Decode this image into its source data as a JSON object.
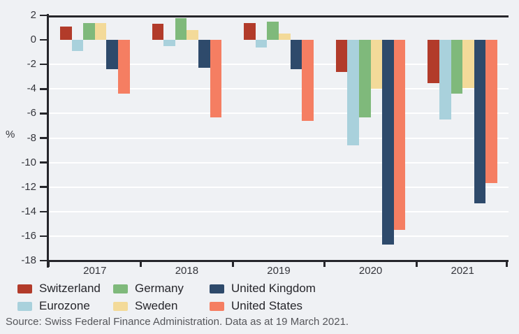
{
  "chart": {
    "percent_label": "%"
  },
  "source": "Source: Swiss Federal Finance Administration. Data as at 19 March 2021.",
  "colors": {
    "background": "#eff1f4",
    "axis": "#26262b",
    "gridline": "#ffffff",
    "tick_text": "#35363c",
    "legend_text": "#26262b",
    "source_text": "#55565a"
  },
  "legend": {
    "display_order": [
      "Switzerland",
      "Germany",
      "United Kingdom",
      "Eurozone",
      "Sweden",
      "United States"
    ]
  },
  "chart_data": {
    "type": "bar",
    "title": "",
    "xlabel": "",
    "ylabel": "%",
    "ylim": [
      -18,
      2
    ],
    "yticks": [
      2,
      0,
      -2,
      -4,
      -6,
      -8,
      -10,
      -12,
      -14,
      -16,
      -18
    ],
    "gridlines": [
      2,
      -2,
      -4,
      -6,
      -8,
      -10,
      -12,
      -14,
      -16
    ],
    "grid": "horizontal white gridlines on light gray background",
    "legend_position": "bottom-left, two rows of three",
    "categories": [
      "2017",
      "2018",
      "2019",
      "2020",
      "2021"
    ],
    "series": [
      {
        "name": "Switzerland",
        "color": "#b23b2a",
        "values": [
          1.1,
          1.3,
          1.4,
          -2.6,
          -3.5
        ]
      },
      {
        "name": "Eurozone",
        "color": "#a9d1dc",
        "values": [
          -0.9,
          -0.5,
          -0.6,
          -8.6,
          -6.5
        ]
      },
      {
        "name": "Germany",
        "color": "#7fb97b",
        "values": [
          1.4,
          1.8,
          1.5,
          -6.3,
          -4.4
        ]
      },
      {
        "name": "Sweden",
        "color": "#f3da99",
        "values": [
          1.4,
          0.8,
          0.5,
          -4.0,
          -3.9
        ]
      },
      {
        "name": "United Kingdom",
        "color": "#2e4a6b",
        "values": [
          -2.4,
          -2.3,
          -2.4,
          -16.7,
          -13.3
        ]
      },
      {
        "name": "United States",
        "color": "#f57e62",
        "values": [
          -4.4,
          -6.3,
          -6.6,
          -15.5,
          -11.7
        ]
      }
    ]
  }
}
